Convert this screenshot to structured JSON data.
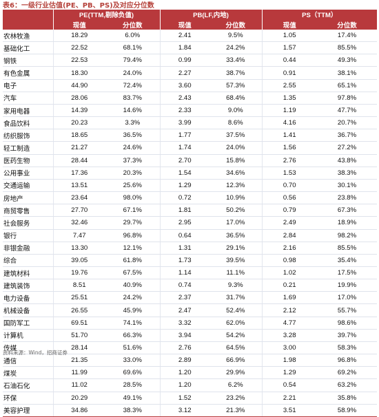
{
  "caption": "表6：一级行业估值(PE、PB、PS)及对应分位数",
  "source": "资料来源：Wind，招商证券",
  "headers": {
    "pe": "PE(TTM,剔除负值)",
    "pb": "PB(LF,内地)",
    "ps": "PS（TTM）",
    "current": "现值",
    "percentile": "分位数"
  },
  "rows": [
    {
      "name": "农林牧渔",
      "pe": "18.29",
      "pe_pct": "6.0%",
      "pb": "2.41",
      "pb_pct": "9.5%",
      "ps": "1.05",
      "ps_pct": "17.4%"
    },
    {
      "name": "基础化工",
      "pe": "22.52",
      "pe_pct": "68.1%",
      "pb": "1.84",
      "pb_pct": "24.2%",
      "ps": "1.57",
      "ps_pct": "85.5%"
    },
    {
      "name": "钢铁",
      "pe": "22.53",
      "pe_pct": "79.4%",
      "pb": "0.99",
      "pb_pct": "33.4%",
      "ps": "0.44",
      "ps_pct": "49.3%"
    },
    {
      "name": "有色金属",
      "pe": "18.30",
      "pe_pct": "24.0%",
      "pb": "2.27",
      "pb_pct": "38.7%",
      "ps": "0.91",
      "ps_pct": "38.1%"
    },
    {
      "name": "电子",
      "pe": "44.90",
      "pe_pct": "72.4%",
      "pb": "3.60",
      "pb_pct": "57.3%",
      "ps": "2.55",
      "ps_pct": "65.1%"
    },
    {
      "name": "汽车",
      "pe": "28.06",
      "pe_pct": "83.7%",
      "pb": "2.43",
      "pb_pct": "68.4%",
      "ps": "1.35",
      "ps_pct": "97.8%"
    },
    {
      "name": "家用电器",
      "pe": "14.39",
      "pe_pct": "14.6%",
      "pb": "2.33",
      "pb_pct": "9.0%",
      "ps": "1.19",
      "ps_pct": "47.7%"
    },
    {
      "name": "食品饮料",
      "pe": "20.23",
      "pe_pct": "3.3%",
      "pb": "3.99",
      "pb_pct": "8.6%",
      "ps": "4.16",
      "ps_pct": "20.7%"
    },
    {
      "name": "纺织服饰",
      "pe": "18.65",
      "pe_pct": "36.5%",
      "pb": "1.77",
      "pb_pct": "37.5%",
      "ps": "1.41",
      "ps_pct": "36.7%"
    },
    {
      "name": "轻工制造",
      "pe": "21.27",
      "pe_pct": "24.6%",
      "pb": "1.74",
      "pb_pct": "24.0%",
      "ps": "1.56",
      "ps_pct": "27.2%"
    },
    {
      "name": "医药生物",
      "pe": "28.44",
      "pe_pct": "37.3%",
      "pb": "2.70",
      "pb_pct": "15.8%",
      "ps": "2.76",
      "ps_pct": "43.8%"
    },
    {
      "name": "公用事业",
      "pe": "17.36",
      "pe_pct": "20.3%",
      "pb": "1.54",
      "pb_pct": "34.6%",
      "ps": "1.53",
      "ps_pct": "38.3%"
    },
    {
      "name": "交通运输",
      "pe": "13.51",
      "pe_pct": "25.6%",
      "pb": "1.29",
      "pb_pct": "12.3%",
      "ps": "0.70",
      "ps_pct": "30.1%"
    },
    {
      "name": "房地产",
      "pe": "23.64",
      "pe_pct": "98.0%",
      "pb": "0.72",
      "pb_pct": "10.9%",
      "ps": "0.56",
      "ps_pct": "23.8%"
    },
    {
      "name": "商贸零售",
      "pe": "27.70",
      "pe_pct": "67.1%",
      "pb": "1.81",
      "pb_pct": "50.2%",
      "ps": "0.79",
      "ps_pct": "67.3%"
    },
    {
      "name": "社会服务",
      "pe": "32.46",
      "pe_pct": "29.7%",
      "pb": "2.95",
      "pb_pct": "17.0%",
      "ps": "2.49",
      "ps_pct": "18.9%"
    },
    {
      "name": "银行",
      "pe": "7.47",
      "pe_pct": "96.8%",
      "pb": "0.64",
      "pb_pct": "36.5%",
      "ps": "2.84",
      "ps_pct": "98.2%"
    },
    {
      "name": "非银金融",
      "pe": "13.30",
      "pe_pct": "12.1%",
      "pb": "1.31",
      "pb_pct": "29.1%",
      "ps": "2.16",
      "ps_pct": "85.5%"
    },
    {
      "name": "综合",
      "pe": "39.05",
      "pe_pct": "61.8%",
      "pb": "1.73",
      "pb_pct": "39.5%",
      "ps": "0.98",
      "ps_pct": "35.4%"
    },
    {
      "name": "建筑材料",
      "pe": "19.76",
      "pe_pct": "67.5%",
      "pb": "1.14",
      "pb_pct": "11.1%",
      "ps": "1.02",
      "ps_pct": "17.5%"
    },
    {
      "name": "建筑装饰",
      "pe": "8.51",
      "pe_pct": "40.9%",
      "pb": "0.74",
      "pb_pct": "9.3%",
      "ps": "0.21",
      "ps_pct": "19.9%"
    },
    {
      "name": "电力设备",
      "pe": "25.51",
      "pe_pct": "24.2%",
      "pb": "2.37",
      "pb_pct": "31.7%",
      "ps": "1.69",
      "ps_pct": "17.0%"
    },
    {
      "name": "机械设备",
      "pe": "26.55",
      "pe_pct": "45.9%",
      "pb": "2.47",
      "pb_pct": "52.4%",
      "ps": "2.12",
      "ps_pct": "55.7%"
    },
    {
      "name": "国防军工",
      "pe": "69.51",
      "pe_pct": "74.1%",
      "pb": "3.32",
      "pb_pct": "62.0%",
      "ps": "4.77",
      "ps_pct": "98.6%"
    },
    {
      "name": "计算机",
      "pe": "51.70",
      "pe_pct": "66.3%",
      "pb": "3.94",
      "pb_pct": "54.2%",
      "ps": "3.28",
      "ps_pct": "39.7%"
    },
    {
      "name": "传媒",
      "pe": "28.14",
      "pe_pct": "51.6%",
      "pb": "2.76",
      "pb_pct": "64.5%",
      "ps": "3.00",
      "ps_pct": "58.3%"
    },
    {
      "name": "通信",
      "pe": "21.35",
      "pe_pct": "33.0%",
      "pb": "2.89",
      "pb_pct": "66.9%",
      "ps": "1.98",
      "ps_pct": "96.8%"
    },
    {
      "name": "煤炭",
      "pe": "11.99",
      "pe_pct": "69.6%",
      "pb": "1.20",
      "pb_pct": "29.9%",
      "ps": "1.29",
      "ps_pct": "69.2%"
    },
    {
      "name": "石油石化",
      "pe": "11.02",
      "pe_pct": "28.5%",
      "pb": "1.20",
      "pb_pct": "6.2%",
      "ps": "0.54",
      "ps_pct": "63.2%"
    },
    {
      "name": "环保",
      "pe": "20.29",
      "pe_pct": "49.1%",
      "pb": "1.52",
      "pb_pct": "23.2%",
      "ps": "2.21",
      "ps_pct": "35.8%"
    },
    {
      "name": "美容护理",
      "pe": "34.86",
      "pe_pct": "38.3%",
      "pb": "3.12",
      "pb_pct": "21.3%",
      "ps": "3.51",
      "ps_pct": "58.9%"
    }
  ]
}
